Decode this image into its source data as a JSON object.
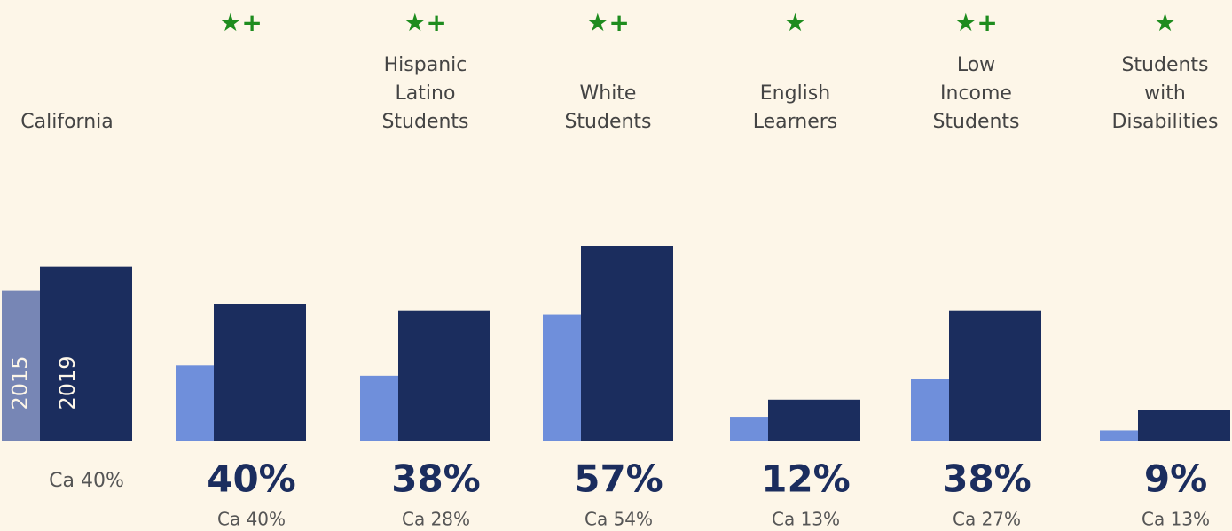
{
  "chart_data": {
    "type": "bar",
    "categories": [
      [
        "California"
      ],
      null,
      [
        "Hispanic",
        "Latino",
        "Students"
      ],
      [
        "White",
        "Students"
      ],
      [
        "English",
        "Learners"
      ],
      [
        "Low",
        "Income",
        "Students"
      ],
      [
        "Students",
        "with",
        "Disabilities"
      ]
    ],
    "markers": [
      null,
      "★+",
      "★+",
      "★+",
      "★",
      "★+",
      "★"
    ],
    "series": [
      {
        "name": "2015",
        "color": "#6f8fdb",
        "values": [
          44,
          22,
          19,
          37,
          7,
          18,
          3
        ]
      },
      {
        "name": "2019",
        "color": "#1b2d5e",
        "values": [
          51,
          40,
          38,
          57,
          12,
          38,
          9
        ],
        "value_labels": [
          null,
          "40%",
          "38%",
          "57%",
          "12%",
          "38%",
          "9%"
        ]
      }
    ],
    "comparisons": [
      "Ca 40%",
      "Ca 40%",
      "Ca 28%",
      "Ca 54%",
      "Ca 13%",
      "Ca 27%",
      "Ca 13%"
    ],
    "ylim": [
      0,
      60
    ]
  }
}
